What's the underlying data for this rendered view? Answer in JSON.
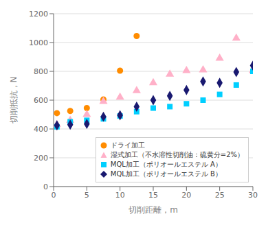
{
  "chart_data": {
    "type": "scatter",
    "xlabel": "切削距離，m",
    "ylabel": "切削抵抗，N",
    "xlim": [
      0,
      30
    ],
    "ylim": [
      0,
      1200
    ],
    "xticks": [
      0,
      5,
      10,
      15,
      20,
      25,
      30
    ],
    "yticks": [
      0,
      200,
      400,
      600,
      800,
      1000,
      1200
    ],
    "grid": true,
    "legend": "lower right",
    "series": [
      {
        "name": "ドライ加工",
        "color": "#FF8C00",
        "marker": "circle",
        "x": [
          0.5,
          2.5,
          5.0,
          7.5,
          10.0,
          12.5
        ],
        "values": [
          510,
          525,
          545,
          605,
          805,
          1045
        ]
      },
      {
        "name": "湿式加工（不水溶性切削油：硫黄分=2%）",
        "color": "#FFB0C8",
        "marker": "triangle",
        "x": [
          0.5,
          2.5,
          5.0,
          7.5,
          10.0,
          12.5,
          15.0,
          17.5,
          20.0,
          22.5,
          25.0,
          27.5,
          30.0
        ],
        "values": [
          430,
          460,
          500,
          590,
          620,
          665,
          720,
          780,
          805,
          810,
          890,
          1030,
          805
        ]
      },
      {
        "name": "MQL加工（ポリオールエステル A）",
        "color": "#00CFFF",
        "marker": "square",
        "x": [
          0.5,
          2.5,
          5.0,
          7.5,
          10.0,
          12.5,
          15.0,
          17.5,
          20.0,
          22.5,
          25.0,
          27.5,
          30.0
        ],
        "values": [
          415,
          450,
          460,
          470,
          490,
          520,
          545,
          555,
          575,
          600,
          640,
          705,
          800
        ]
      },
      {
        "name": "MQL加工（ポリオールエステル B）",
        "color": "#191970",
        "marker": "diamond",
        "x": [
          0.5,
          2.5,
          5.0,
          7.5,
          10.0,
          12.5,
          15.0,
          17.5,
          20.0,
          22.5,
          25.0,
          27.5,
          30.0
        ],
        "values": [
          425,
          430,
          435,
          485,
          495,
          555,
          600,
          630,
          670,
          730,
          720,
          795,
          840
        ]
      }
    ]
  }
}
